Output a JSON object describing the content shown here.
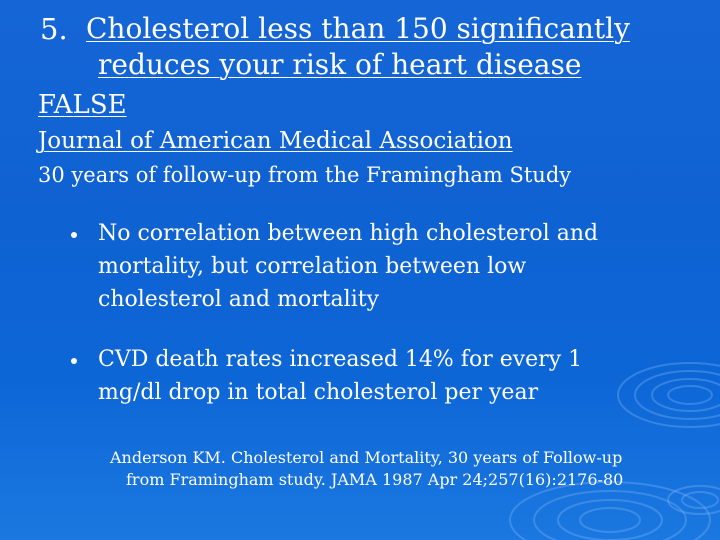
{
  "slide": {
    "number": "5.",
    "title_line1": "Cholesterol less than 150 significantly",
    "title_line2": "reduces your risk of heart disease",
    "answer": "FALSE",
    "source": "Journal of American Medical Association",
    "study": "30 years of follow-up from the Framingham Study",
    "bullets": [
      {
        "lines": [
          "No correlation between high cholesterol and",
          "mortality, but correlation between low",
          "cholesterol and mortality"
        ]
      },
      {
        "lines": [
          "CVD death rates increased 14% for every 1",
          "mg/dl drop in total cholesterol per year"
        ]
      }
    ],
    "reference_line1": "Anderson KM. Cholesterol and Mortality, 30 years of Follow-up",
    "reference_line2": "from Framingham study. JAMA 1987 Apr 24;257(16):2176-80"
  },
  "colors": {
    "background": "#1565d6",
    "text": "#ffffff"
  }
}
